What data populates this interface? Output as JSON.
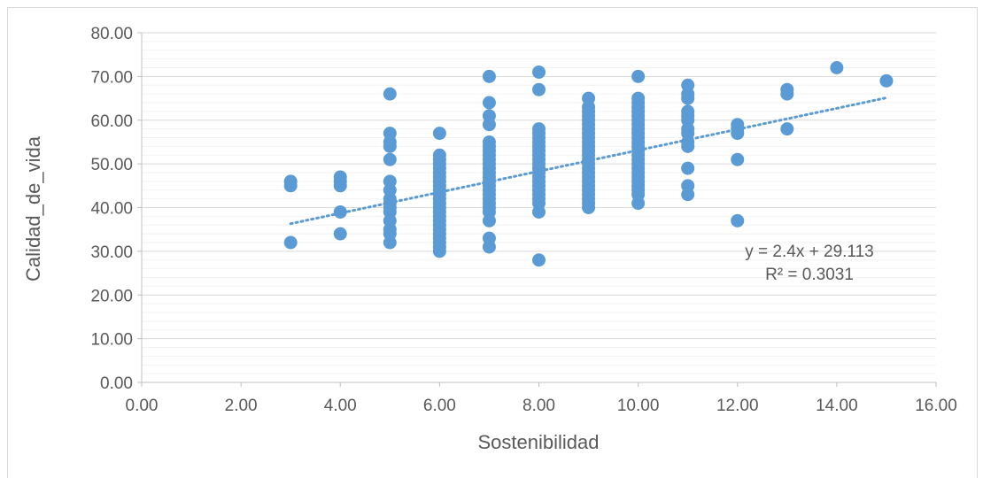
{
  "chart_data": {
    "type": "scatter",
    "xlabel": "Sostenibilidad",
    "ylabel": "Calidad_de_vida",
    "xlim": [
      0,
      16
    ],
    "ylim": [
      0,
      80
    ],
    "x_ticks": [
      "0.00",
      "2.00",
      "4.00",
      "6.00",
      "8.00",
      "10.00",
      "12.00",
      "14.00",
      "16.00"
    ],
    "y_ticks": [
      "0.00",
      "10.00",
      "20.00",
      "30.00",
      "40.00",
      "50.00",
      "60.00",
      "70.00",
      "80.00"
    ],
    "grid": true,
    "legend": "none",
    "marker_color": "#5b9bd5",
    "trendline": {
      "type": "linear",
      "slope": 2.4,
      "intercept": 29.113,
      "x_range": [
        3,
        15
      ],
      "style": "dotted",
      "equation": "y = 2.4x + 29.113",
      "r2": "R² = 0.3031"
    },
    "points": [
      [
        3,
        46
      ],
      [
        3,
        45
      ],
      [
        3,
        32
      ],
      [
        4,
        47
      ],
      [
        4,
        46
      ],
      [
        4,
        45
      ],
      [
        4,
        39
      ],
      [
        4,
        34
      ],
      [
        5,
        66
      ],
      [
        5,
        57
      ],
      [
        5,
        55
      ],
      [
        5,
        54
      ],
      [
        5,
        51
      ],
      [
        5,
        46
      ],
      [
        5,
        44
      ],
      [
        5,
        42
      ],
      [
        5,
        41
      ],
      [
        5,
        40
      ],
      [
        5,
        39
      ],
      [
        5,
        37
      ],
      [
        5,
        35
      ],
      [
        5,
        34
      ],
      [
        5,
        32
      ],
      [
        6,
        57
      ],
      [
        6,
        52
      ],
      [
        6,
        51
      ],
      [
        6,
        50
      ],
      [
        6,
        49
      ],
      [
        6,
        48
      ],
      [
        6,
        47
      ],
      [
        6,
        46
      ],
      [
        6,
        45
      ],
      [
        6,
        44
      ],
      [
        6,
        43
      ],
      [
        6,
        42
      ],
      [
        6,
        41
      ],
      [
        6,
        40
      ],
      [
        6,
        39
      ],
      [
        6,
        38
      ],
      [
        6,
        37
      ],
      [
        6,
        36
      ],
      [
        6,
        35
      ],
      [
        6,
        34
      ],
      [
        6,
        33
      ],
      [
        6,
        32
      ],
      [
        6,
        31
      ],
      [
        6,
        30
      ],
      [
        7,
        70
      ],
      [
        7,
        64
      ],
      [
        7,
        61
      ],
      [
        7,
        59
      ],
      [
        7,
        55
      ],
      [
        7,
        54
      ],
      [
        7,
        53
      ],
      [
        7,
        52
      ],
      [
        7,
        51
      ],
      [
        7,
        50
      ],
      [
        7,
        49
      ],
      [
        7,
        48
      ],
      [
        7,
        47
      ],
      [
        7,
        46
      ],
      [
        7,
        45
      ],
      [
        7,
        44
      ],
      [
        7,
        43
      ],
      [
        7,
        42
      ],
      [
        7,
        41
      ],
      [
        7,
        40
      ],
      [
        7,
        39
      ],
      [
        7,
        37
      ],
      [
        7,
        33
      ],
      [
        7,
        31
      ],
      [
        8,
        71
      ],
      [
        8,
        67
      ],
      [
        8,
        58
      ],
      [
        8,
        57
      ],
      [
        8,
        56
      ],
      [
        8,
        55
      ],
      [
        8,
        54
      ],
      [
        8,
        53
      ],
      [
        8,
        52
      ],
      [
        8,
        51
      ],
      [
        8,
        50
      ],
      [
        8,
        49
      ],
      [
        8,
        48
      ],
      [
        8,
        47
      ],
      [
        8,
        46
      ],
      [
        8,
        45
      ],
      [
        8,
        44
      ],
      [
        8,
        43
      ],
      [
        8,
        42
      ],
      [
        8,
        41
      ],
      [
        8,
        39
      ],
      [
        8,
        28
      ],
      [
        9,
        65
      ],
      [
        9,
        63
      ],
      [
        9,
        62
      ],
      [
        9,
        61
      ],
      [
        9,
        60
      ],
      [
        9,
        59
      ],
      [
        9,
        58
      ],
      [
        9,
        57
      ],
      [
        9,
        56
      ],
      [
        9,
        55
      ],
      [
        9,
        54
      ],
      [
        9,
        53
      ],
      [
        9,
        52
      ],
      [
        9,
        51
      ],
      [
        9,
        50
      ],
      [
        9,
        49
      ],
      [
        9,
        48
      ],
      [
        9,
        47
      ],
      [
        9,
        46
      ],
      [
        9,
        45
      ],
      [
        9,
        44
      ],
      [
        9,
        43
      ],
      [
        9,
        42
      ],
      [
        9,
        41
      ],
      [
        9,
        40
      ],
      [
        10,
        70
      ],
      [
        10,
        65
      ],
      [
        10,
        64
      ],
      [
        10,
        63
      ],
      [
        10,
        62
      ],
      [
        10,
        61
      ],
      [
        10,
        60
      ],
      [
        10,
        59
      ],
      [
        10,
        58
      ],
      [
        10,
        57
      ],
      [
        10,
        56
      ],
      [
        10,
        55
      ],
      [
        10,
        54
      ],
      [
        10,
        53
      ],
      [
        10,
        52
      ],
      [
        10,
        51
      ],
      [
        10,
        50
      ],
      [
        10,
        49
      ],
      [
        10,
        48
      ],
      [
        10,
        47
      ],
      [
        10,
        46
      ],
      [
        10,
        45
      ],
      [
        10,
        44
      ],
      [
        10,
        43
      ],
      [
        10,
        41
      ],
      [
        11,
        68
      ],
      [
        11,
        66
      ],
      [
        11,
        65
      ],
      [
        11,
        62
      ],
      [
        11,
        61
      ],
      [
        11,
        60
      ],
      [
        11,
        58
      ],
      [
        11,
        57
      ],
      [
        11,
        55
      ],
      [
        11,
        54
      ],
      [
        11,
        49
      ],
      [
        11,
        45
      ],
      [
        11,
        43
      ],
      [
        12,
        59
      ],
      [
        12,
        58
      ],
      [
        12,
        57
      ],
      [
        12,
        51
      ],
      [
        12,
        37
      ],
      [
        13,
        67
      ],
      [
        13,
        66
      ],
      [
        13,
        58
      ],
      [
        14,
        72
      ],
      [
        15,
        69
      ]
    ]
  }
}
